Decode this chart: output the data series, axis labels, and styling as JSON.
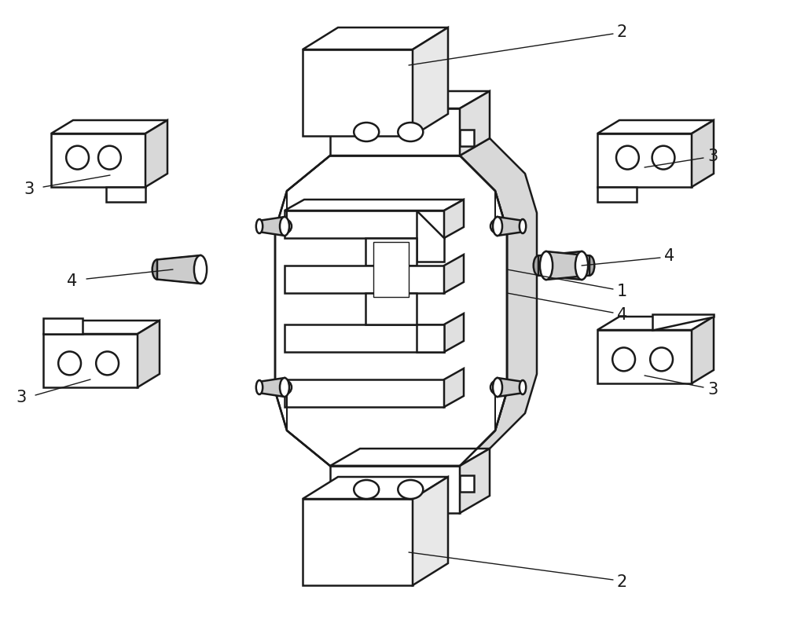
{
  "bg_color": "#ffffff",
  "line_color": "#1a1a1a",
  "lw_main": 1.8,
  "lw_thin": 1.0,
  "fig_width": 10.0,
  "fig_height": 7.93,
  "label_fs": 15
}
